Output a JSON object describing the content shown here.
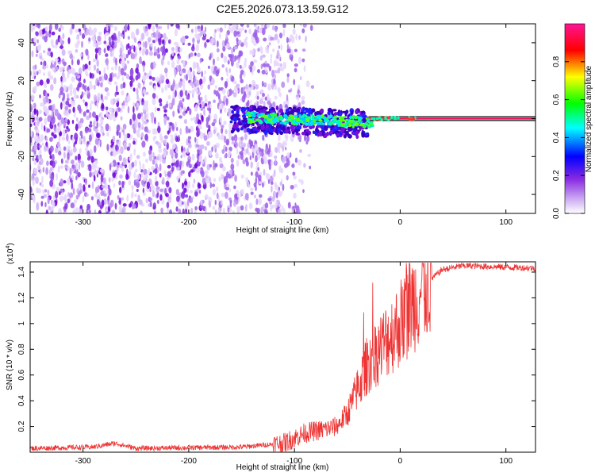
{
  "figure_title": "C2E5.2026.073.13.59.G12",
  "chart_data": [
    {
      "type": "heatmap",
      "name": "spectrogram",
      "xlabel": "Height of straight line (km)",
      "ylabel": "Frequency (Hz)",
      "xlim": [
        -350,
        128
      ],
      "ylim": [
        -50,
        50
      ],
      "xticks": [
        -300,
        -200,
        -100,
        0,
        100
      ],
      "yticks": [
        -40,
        -20,
        0,
        20,
        40
      ],
      "colorbar": {
        "label": "Normalized spectral amplitude",
        "range": [
          0,
          1
        ],
        "ticks": [
          0.0,
          0.2,
          0.4,
          0.6,
          0.8
        ],
        "tick_labels": [
          "0.0",
          "0.2",
          "0.4",
          "0.6",
          "0.8"
        ],
        "colormap": [
          "#ffffff",
          "#8a2be2",
          "#0000ff",
          "#00ffff",
          "#00ff00",
          "#ffff00",
          "#ff0000",
          "#ff1493"
        ]
      },
      "features": {
        "noise_region_x": [
          -350,
          -120
        ],
        "noise_level": 0.15,
        "signal_band_center_hz": 0,
        "signal_band_start_x": -160,
        "strong_line_start_x": -30
      }
    },
    {
      "type": "line",
      "name": "snr",
      "xlabel": "Height of straight line (km)",
      "ylabel": "SNR (10 * v/v)",
      "y_scale_label": "(x10",
      "y_scale_exp": "4",
      "y_scale_close": ")",
      "xlim": [
        -350,
        128
      ],
      "ylim": [
        0,
        1.48
      ],
      "xticks": [
        -300,
        -200,
        -100,
        0,
        100
      ],
      "yticks": [
        0.2,
        0.4,
        0.6,
        0.8,
        1.0,
        1.2,
        1.4
      ],
      "ytick_labels": [
        "0.2",
        "0.4",
        "0.6",
        "0.8",
        "1",
        "1.2",
        "1.4"
      ],
      "color": "#ee3333",
      "envelope_x": [
        -350,
        -290,
        -270,
        -250,
        -150,
        -110,
        -90,
        -70,
        -60,
        -50,
        -40,
        -30,
        -20,
        -15,
        -10,
        0,
        10,
        20,
        30,
        40,
        60,
        128
      ],
      "envelope_y": [
        0.03,
        0.04,
        0.07,
        0.03,
        0.04,
        0.07,
        0.15,
        0.18,
        0.2,
        0.3,
        0.5,
        0.7,
        0.8,
        0.85,
        0.9,
        1.0,
        1.15,
        1.25,
        1.35,
        1.42,
        1.45,
        1.43
      ]
    }
  ]
}
